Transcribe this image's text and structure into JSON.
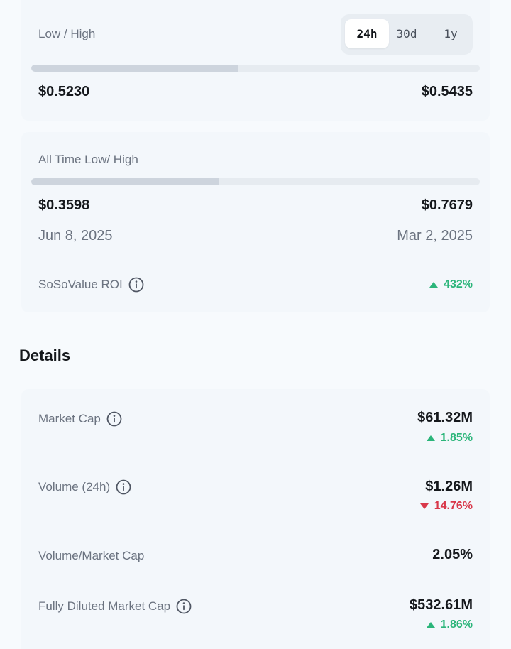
{
  "range_card": {
    "label": "Low / High",
    "periods": [
      "24h",
      "30d",
      "1y"
    ],
    "active_period": "24h",
    "progress": 0.46,
    "low": "$0.5230",
    "high": "$0.5435"
  },
  "ath_card": {
    "label": "All Time Low/ High",
    "progress": 0.42,
    "low": "$0.3598",
    "high": "$0.7679",
    "low_date": "Jun 8, 2025",
    "high_date": "Mar 2, 2025",
    "roi_label": "SoSoValue ROI",
    "roi_value": "432%",
    "roi_direction": "up"
  },
  "details": {
    "title": "Details",
    "rows": [
      {
        "label": "Market Cap",
        "value": "$61.32M",
        "change": "1.85%",
        "direction": "up",
        "info": true
      },
      {
        "label": "Volume (24h)",
        "value": "$1.26M",
        "change": "14.76%",
        "direction": "down",
        "info": true
      },
      {
        "label": "Volume/Market Cap",
        "value": "2.05%",
        "info": false
      },
      {
        "label": "Fully Diluted Market Cap",
        "value": "$532.61M",
        "change": "1.86%",
        "direction": "up",
        "info": true
      }
    ]
  },
  "colors": {
    "positive": "#2bb57a",
    "negative": "#d9384a",
    "background": "#f7fafd",
    "card": "#f3f7fb"
  }
}
